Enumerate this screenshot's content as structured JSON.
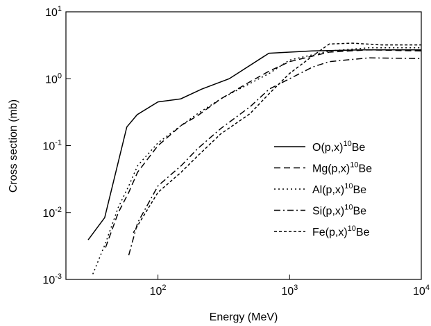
{
  "chart_data": {
    "type": "line",
    "x_label": "Energy (MeV)",
    "y_label": "Cross section (mb)",
    "xscale": "log",
    "yscale": "log",
    "xlim": [
      20,
      10000
    ],
    "ylim": [
      0.001,
      10
    ],
    "xticks": [
      {
        "value": 100,
        "label": "10^{2}"
      },
      {
        "value": 1000,
        "label": "10^{3}"
      },
      {
        "value": 10000,
        "label": "10^{4}"
      }
    ],
    "yticks": [
      {
        "value": 0.001,
        "label": "10^{-3}"
      },
      {
        "value": 0.01,
        "label": "10^{-2}"
      },
      {
        "value": 0.1,
        "label": "10^{-1}"
      },
      {
        "value": 1,
        "label": "10^{0}"
      },
      {
        "value": 10,
        "label": "10^{1}"
      }
    ],
    "legend": "right",
    "series": [
      {
        "name": "O(p,x)^{10}Be",
        "color": "#000000",
        "line_style": "solid",
        "x": [
          29.5,
          39.4,
          58,
          69.5,
          100,
          149,
          215,
          348,
          695,
          1480,
          3500,
          10000
        ],
        "values": [
          0.0039,
          0.0084,
          0.19,
          0.29,
          0.45,
          0.5,
          0.7,
          1.0,
          2.4,
          2.6,
          2.7,
          2.7
        ]
      },
      {
        "name": "Mg(p,x)^{10}Be",
        "color": "#000000",
        "line_style": "dashed",
        "x": [
          40,
          50,
          60,
          70,
          100,
          150,
          200,
          300,
          500,
          700,
          1000,
          2000,
          4000,
          10000
        ],
        "values": [
          0.003,
          0.01,
          0.02,
          0.04,
          0.1,
          0.2,
          0.28,
          0.5,
          0.9,
          1.3,
          1.8,
          2.5,
          2.7,
          2.6
        ]
      },
      {
        "name": "Al(p,x)^{10}Be",
        "color": "#000000",
        "line_style": "dotted",
        "x": [
          32,
          40,
          50,
          60,
          70,
          100,
          150,
          200,
          300,
          500,
          700,
          1000,
          2000,
          4000,
          10000
        ],
        "values": [
          0.0012,
          0.0035,
          0.012,
          0.025,
          0.05,
          0.11,
          0.2,
          0.3,
          0.5,
          0.85,
          1.2,
          1.9,
          2.6,
          2.9,
          2.9
        ]
      },
      {
        "name": "Si(p,x)^{10}Be",
        "color": "#000000",
        "line_style": "dashdot",
        "x": [
          60,
          70,
          100,
          150,
          200,
          300,
          500,
          700,
          1000,
          1500,
          2000,
          4000,
          10000
        ],
        "values": [
          0.0023,
          0.007,
          0.025,
          0.05,
          0.09,
          0.18,
          0.38,
          0.7,
          1.0,
          1.5,
          1.8,
          2.05,
          2.0
        ]
      },
      {
        "name": "Fe(p,x)^{10}Be",
        "color": "#000000",
        "line_style": "shortdash",
        "x": [
          65,
          100,
          150,
          200,
          300,
          500,
          700,
          1000,
          1500,
          2000,
          3000,
          5000,
          10000
        ],
        "values": [
          0.005,
          0.02,
          0.04,
          0.07,
          0.15,
          0.3,
          0.6,
          1.2,
          2.2,
          3.3,
          3.4,
          3.2,
          3.2
        ]
      }
    ]
  }
}
